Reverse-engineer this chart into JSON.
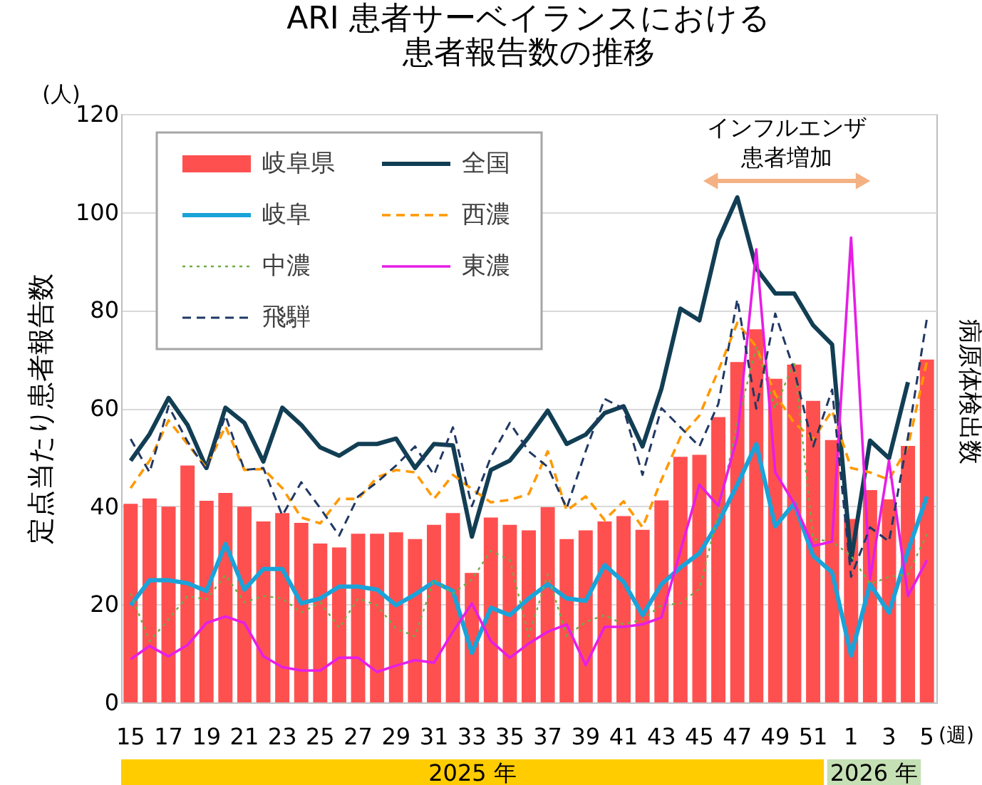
{
  "chart_data": {
    "type": "line",
    "title": "ARI 患者サーベイランスにおける",
    "subtitle": "患者報告数の推移",
    "xlabel": "(週)",
    "ylabel": "定点当たり患者報告数",
    "categories": [
      "15",
      null,
      "17",
      null,
      "19",
      null,
      "21",
      null,
      "23",
      null,
      "25",
      null,
      "27",
      null,
      "29",
      null,
      "31",
      null,
      "33",
      null,
      "35",
      null,
      "37",
      null,
      "39",
      null,
      "41",
      null,
      "43",
      null,
      "45",
      null,
      "47",
      null,
      "49",
      null,
      "51",
      null,
      "1",
      null,
      "3",
      null,
      "5"
    ],
    "series": [
      {
        "name": "岐阜県",
        "type": "bar",
        "color": "#ff5050",
        "values": [
          40.5,
          41.6,
          39.9,
          48.3,
          41.1,
          42.7,
          39.9,
          36.9,
          38.6,
          36.6,
          32.4,
          31.6,
          34.4,
          34.4,
          34.7,
          33.3,
          36.2,
          38.6,
          26.4,
          37.7,
          36.2,
          35.1,
          39.8,
          33.3,
          35.1,
          36.9,
          38.0,
          35.2,
          41.2,
          50.1,
          50.5,
          58.2,
          69.4,
          76.1,
          66.0,
          68.9,
          61.5,
          53.5,
          37.4,
          43.3,
          41.4,
          52.3,
          69.9
        ]
      },
      {
        "name": "全国",
        "color": "#123e54",
        "line_style": "solid",
        "values": [
          49.3,
          54.7,
          62.1,
          56.6,
          47.8,
          60.1,
          57.0,
          49.1,
          60.1,
          56.6,
          52.0,
          50.3,
          52.7,
          52.7,
          53.8,
          47.8,
          52.7,
          52.4,
          33.8,
          47.4,
          49.3,
          54.1,
          59.5,
          52.7,
          54.6,
          59.0,
          60.4,
          52.2,
          64.0,
          80.3,
          77.9,
          94.3,
          103.0,
          88.5,
          83.4,
          83.4,
          76.9,
          73.0,
          29.0,
          53.4,
          49.8,
          65.3,
          null
        ]
      },
      {
        "name": "岐阜",
        "color": "#1aa3d9",
        "line_style": "solid",
        "values": [
          19.8,
          24.9,
          24.9,
          24.3,
          22.7,
          32.3,
          23.0,
          27.2,
          27.2,
          20.2,
          21.2,
          23.6,
          23.6,
          23.0,
          19.8,
          22.0,
          24.6,
          22.7,
          10.1,
          19.3,
          17.8,
          21.2,
          24.1,
          21.2,
          20.7,
          28.0,
          24.6,
          17.8,
          24.1,
          27.5,
          30.4,
          36.7,
          44.4,
          52.7,
          35.9,
          40.6,
          29.9,
          26.5,
          9.6,
          24.1,
          18.3,
          30.9,
          42.0
        ]
      },
      {
        "name": "西濃",
        "color": "#ff9900",
        "line_style": "dashed",
        "values": [
          43.7,
          49.3,
          57.5,
          52.7,
          47.8,
          56.3,
          47.4,
          47.6,
          43.7,
          37.7,
          36.5,
          41.5,
          41.5,
          45.9,
          47.4,
          46.9,
          41.5,
          46.4,
          43.5,
          40.8,
          41.3,
          42.5,
          51.2,
          39.1,
          42.0,
          37.2,
          41.0,
          35.7,
          45.4,
          54.1,
          58.5,
          67.7,
          77.4,
          72.5,
          62.8,
          57.0,
          53.7,
          59.5,
          47.8,
          46.9,
          45.4,
          52.2,
          69.6
        ]
      },
      {
        "name": "中濃",
        "color": "#70ad47",
        "line_style": "dotted",
        "values": [
          22.2,
          12.5,
          16.9,
          21.7,
          21.0,
          26.0,
          20.4,
          21.7,
          21.2,
          18.3,
          20.4,
          15.2,
          21.2,
          19.8,
          15.0,
          13.5,
          25.1,
          22.2,
          25.1,
          30.9,
          29.0,
          13.5,
          26.1,
          13.5,
          16.4,
          17.8,
          15.9,
          16.9,
          19.8,
          20.2,
          23.2,
          38.6,
          57.0,
          72.5,
          59.9,
          69.6,
          33.3,
          32.8,
          29.9,
          24.1,
          25.6,
          26.1,
          34.3
        ]
      },
      {
        "name": "東濃",
        "color": "#e61ee6",
        "line_style": "solid",
        "values": [
          8.8,
          11.5,
          9.4,
          11.7,
          16.2,
          17.5,
          16.2,
          9.4,
          7.2,
          6.5,
          6.5,
          9.1,
          9.1,
          6.2,
          7.5,
          8.6,
          8.1,
          14.4,
          20.2,
          12.5,
          9.1,
          12.0,
          14.4,
          15.9,
          7.6,
          15.4,
          15.4,
          15.9,
          17.3,
          30.9,
          44.4,
          40.1,
          54.1,
          92.4,
          46.9,
          40.6,
          31.9,
          32.8,
          94.8,
          25.1,
          49.3,
          21.7,
          29.0
        ]
      },
      {
        "name": "飛騨",
        "color": "#203864",
        "line_style": "dashed",
        "values": [
          53.7,
          46.9,
          60.4,
          53.2,
          47.4,
          58.5,
          47.4,
          47.8,
          38.1,
          44.9,
          39.6,
          34.0,
          42.0,
          44.9,
          48.3,
          52.2,
          46.4,
          56.1,
          40.0,
          50.0,
          57.0,
          51.2,
          48.0,
          39.6,
          51.2,
          61.9,
          59.9,
          46.4,
          60.0,
          56.1,
          52.2,
          60.9,
          82.2,
          59.9,
          79.3,
          67.7,
          52.2,
          63.8,
          25.6,
          35.7,
          32.8,
          54.1,
          78.3
        ]
      }
    ],
    "ylim": [
      0,
      120
    ],
    "yticks": [
      0,
      20,
      40,
      60,
      80,
      100,
      120
    ],
    "grid": "y",
    "legend": "top left",
    "annotations": [
      "(人)",
      "インフルエンザ",
      "患者増加",
      "病原体検出数",
      "2025 年",
      "2026 年"
    ]
  }
}
